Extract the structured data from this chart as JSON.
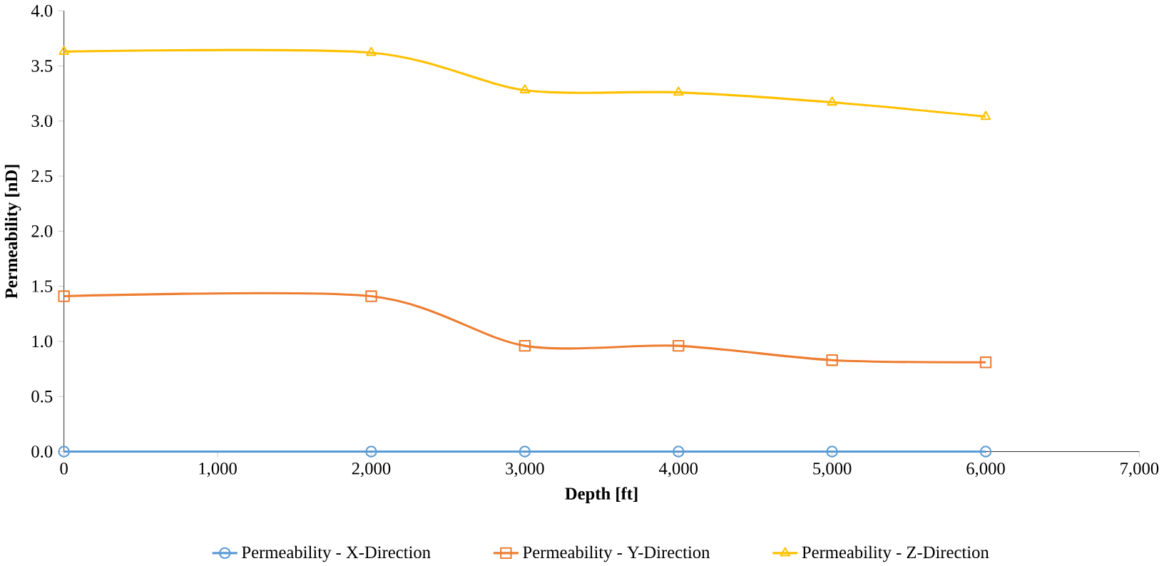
{
  "chart_data": {
    "type": "line",
    "xlabel": "Depth [ft]",
    "ylabel": "Permeability [nD]",
    "x": [
      0,
      2000,
      3000,
      4000,
      5000,
      6000
    ],
    "series": [
      {
        "name": "Permeability - X-Direction",
        "color": "#5b9bd5",
        "marker": "circle",
        "values": [
          0,
          0,
          0,
          0,
          0,
          0
        ]
      },
      {
        "name": "Permeability - Y-Direction",
        "color": "#ed7d31",
        "marker": "square",
        "values": [
          1.41,
          1.41,
          0.96,
          0.96,
          0.83,
          0.81
        ]
      },
      {
        "name": "Permeability - Z-Direction",
        "color": "#ffc000",
        "marker": "triangle",
        "values": [
          3.63,
          3.62,
          3.28,
          3.26,
          3.17,
          3.04
        ]
      }
    ],
    "xlim": [
      0,
      7000
    ],
    "xticks": [
      0,
      {
        "value": 1000,
        "label": "1,000"
      },
      {
        "value": 2000,
        "label": "2,000"
      },
      {
        "value": 3000,
        "label": "3,000"
      },
      {
        "value": 4000,
        "label": "4,000"
      },
      {
        "value": 5000,
        "label": "5,000"
      },
      {
        "value": 6000,
        "label": "6,000"
      },
      {
        "value": 7000,
        "label": "7,000"
      }
    ],
    "ylim": [
      0,
      4
    ],
    "yticks": [
      {
        "value": 0,
        "label": "0.0"
      },
      {
        "value": 0.5,
        "label": "0.5"
      },
      {
        "value": 1,
        "label": "1.0"
      },
      {
        "value": 1.5,
        "label": "1.5"
      },
      {
        "value": 2,
        "label": "2.0"
      },
      {
        "value": 2.5,
        "label": "2.5"
      },
      {
        "value": 3,
        "label": "3.0"
      },
      {
        "value": 3.5,
        "label": "3.5"
      },
      {
        "value": 4,
        "label": "4.0"
      }
    ],
    "grid": false,
    "legend": "bottom",
    "line_style": "solid"
  }
}
